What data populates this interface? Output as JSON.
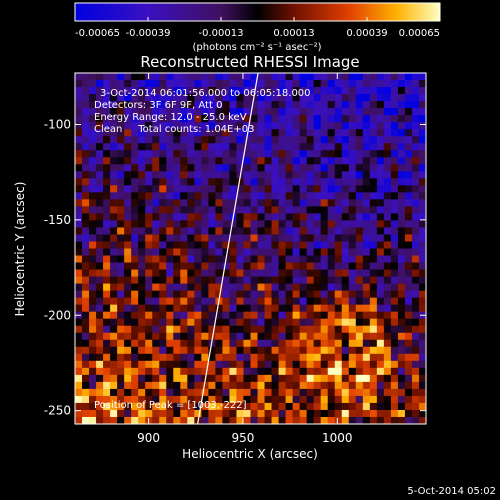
{
  "chart_data": {
    "type": "heatmap",
    "title": "Reconstructed RHESSI Image",
    "xlabel": "Heliocentric X (arcsec)",
    "ylabel": "Heliocentric Y (arcsec)",
    "xlim": [
      861,
      1047
    ],
    "ylim": [
      -257,
      -73
    ],
    "x_ticks": [
      900,
      950,
      1000
    ],
    "y_ticks": [
      -100,
      -150,
      -200,
      -250
    ],
    "colorbar": {
      "range": [
        -0.00065,
        0.00065
      ],
      "tick_labels": [
        "-0.00065",
        "-0.00039",
        "-0.00013",
        "0.00013",
        "0.00039",
        "0.00065"
      ],
      "units_label": "(photons cm⁻² s⁻¹ asec⁻²)"
    },
    "annotations": {
      "time_range": "3-Oct-2014 06:01:56.000 to 06:05:18.000",
      "detectors": "Detectors: 3F 6F 9F, Att 0",
      "energy_range": "Energy Range: 12.0 - 25.0 keV",
      "method": "Clean     Total counts: 1.04E+03",
      "peak": "Position of Peak = [1003,-222]"
    },
    "limb_line": {
      "x": [
        958,
        926
      ],
      "y": [
        -73,
        -257
      ]
    },
    "grid": false
  },
  "footer": {
    "date": "5-Oct-2014 05:02"
  },
  "colors": {
    "background": "#000000",
    "foreground": "#ffffff"
  }
}
